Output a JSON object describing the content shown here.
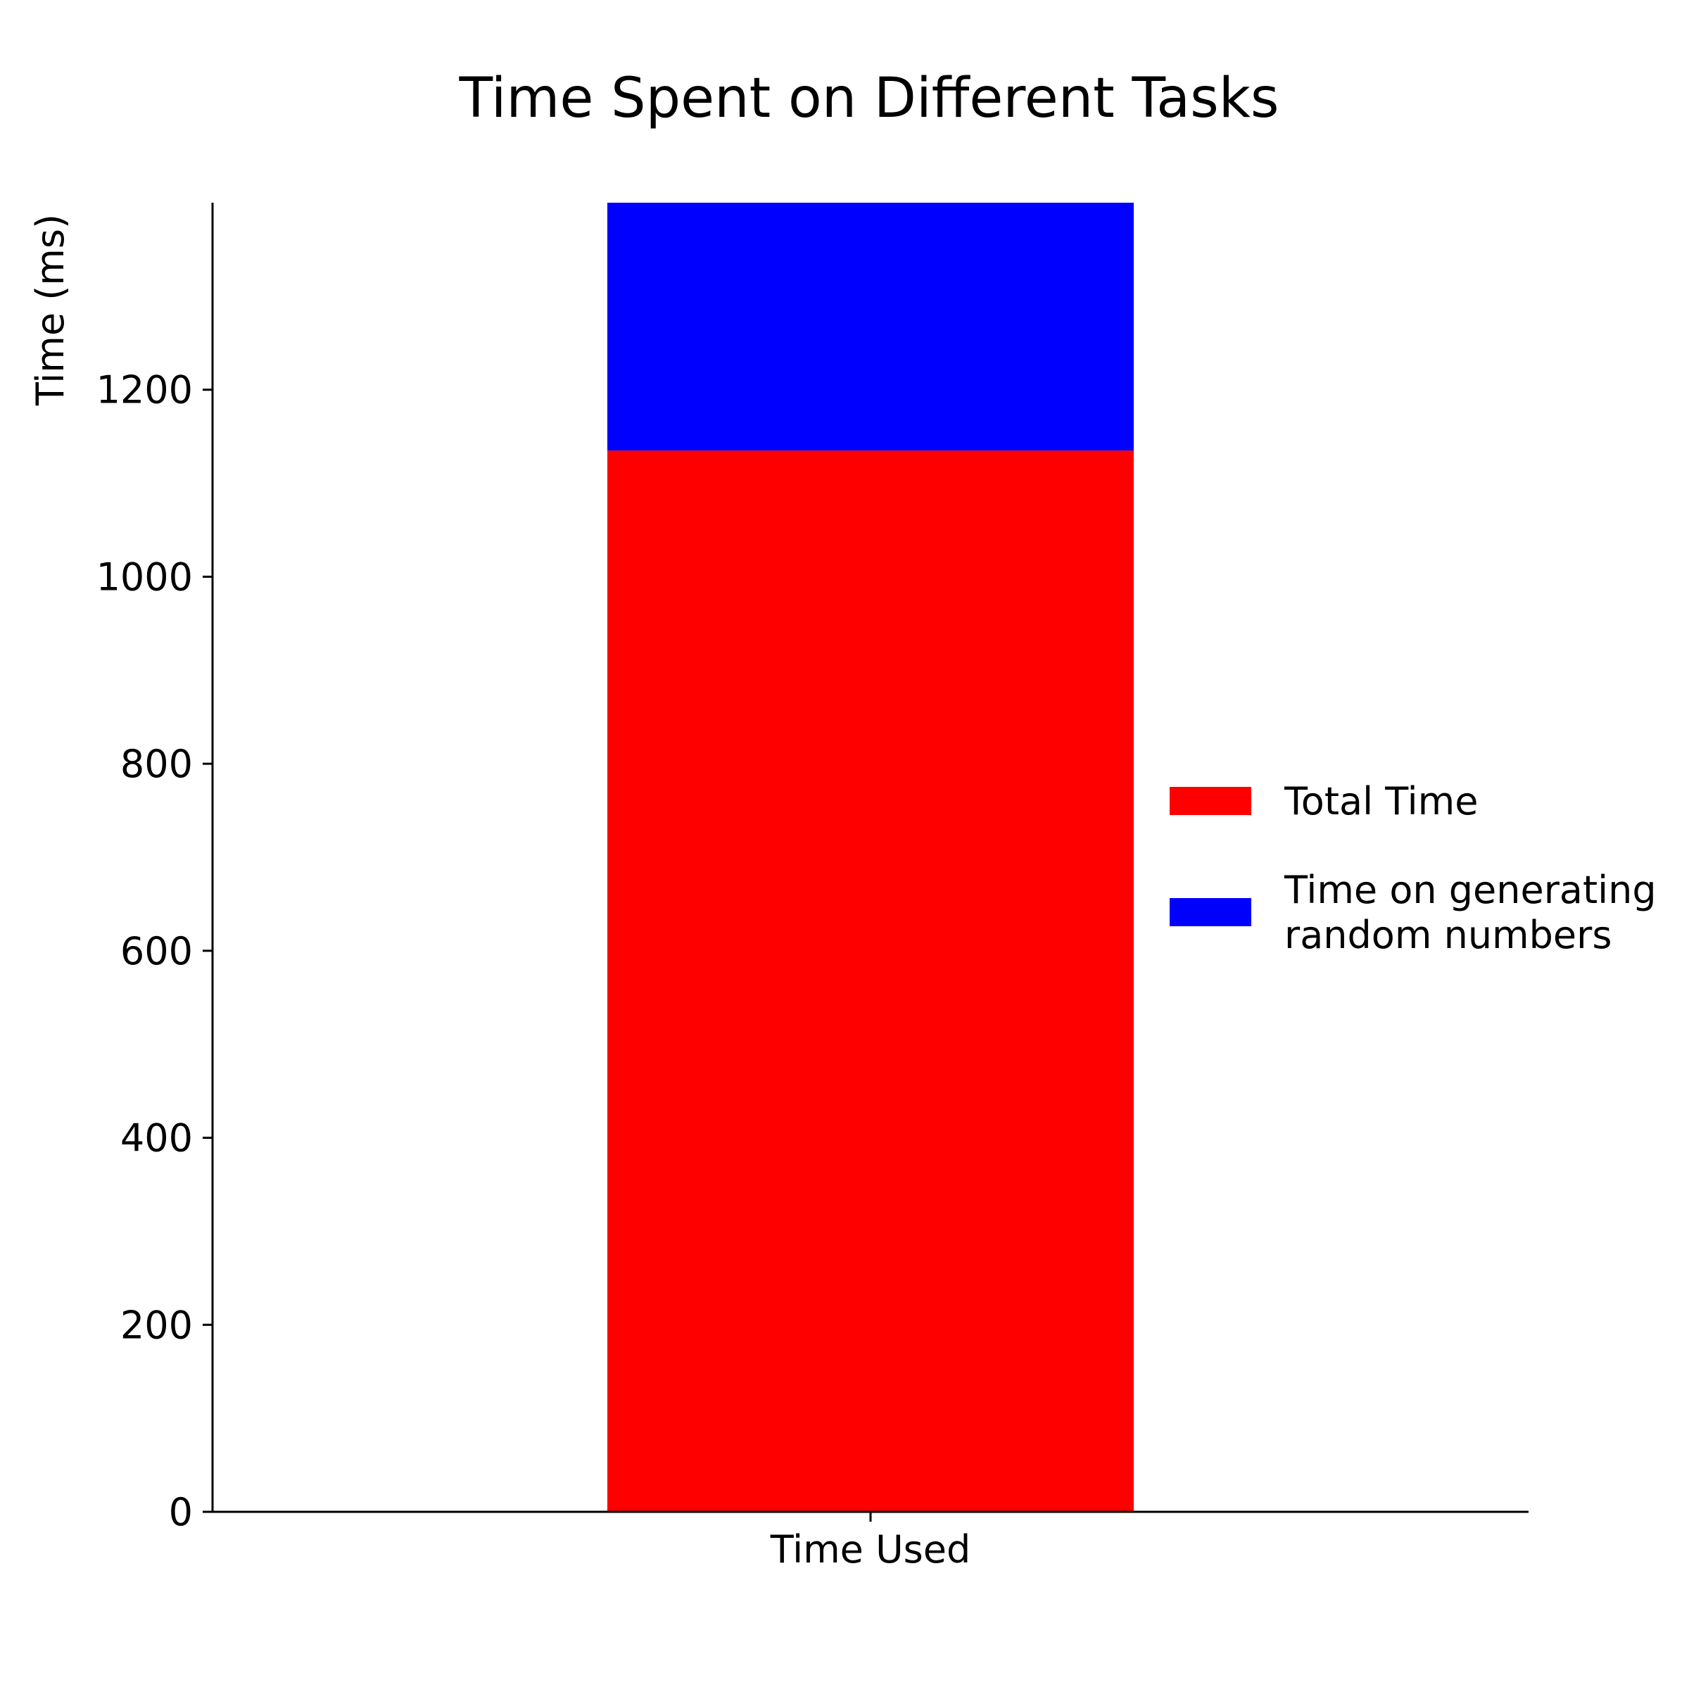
{
  "chart_data": {
    "type": "bar",
    "stacked": true,
    "title": "Time Spent on Different Tasks",
    "xlabel": "",
    "ylabel": "Time (ms)",
    "categories": [
      "Time Used"
    ],
    "ylim": [
      0,
      1400
    ],
    "yticks": [
      0,
      200,
      400,
      600,
      800,
      1000,
      1200
    ],
    "grid": false,
    "legend_position": "center-right outside plot",
    "series": [
      {
        "name": "Total Time",
        "values": [
          1135
        ],
        "color": "#ff0000"
      },
      {
        "name": "Time on generating random numbers",
        "values": [
          265
        ],
        "color": "#0000ff"
      }
    ],
    "legend": [
      {
        "lines": [
          "Total Time"
        ],
        "color": "#ff0000"
      },
      {
        "lines": [
          "Time on generating",
          "random numbers"
        ],
        "color": "#0000ff"
      }
    ]
  }
}
